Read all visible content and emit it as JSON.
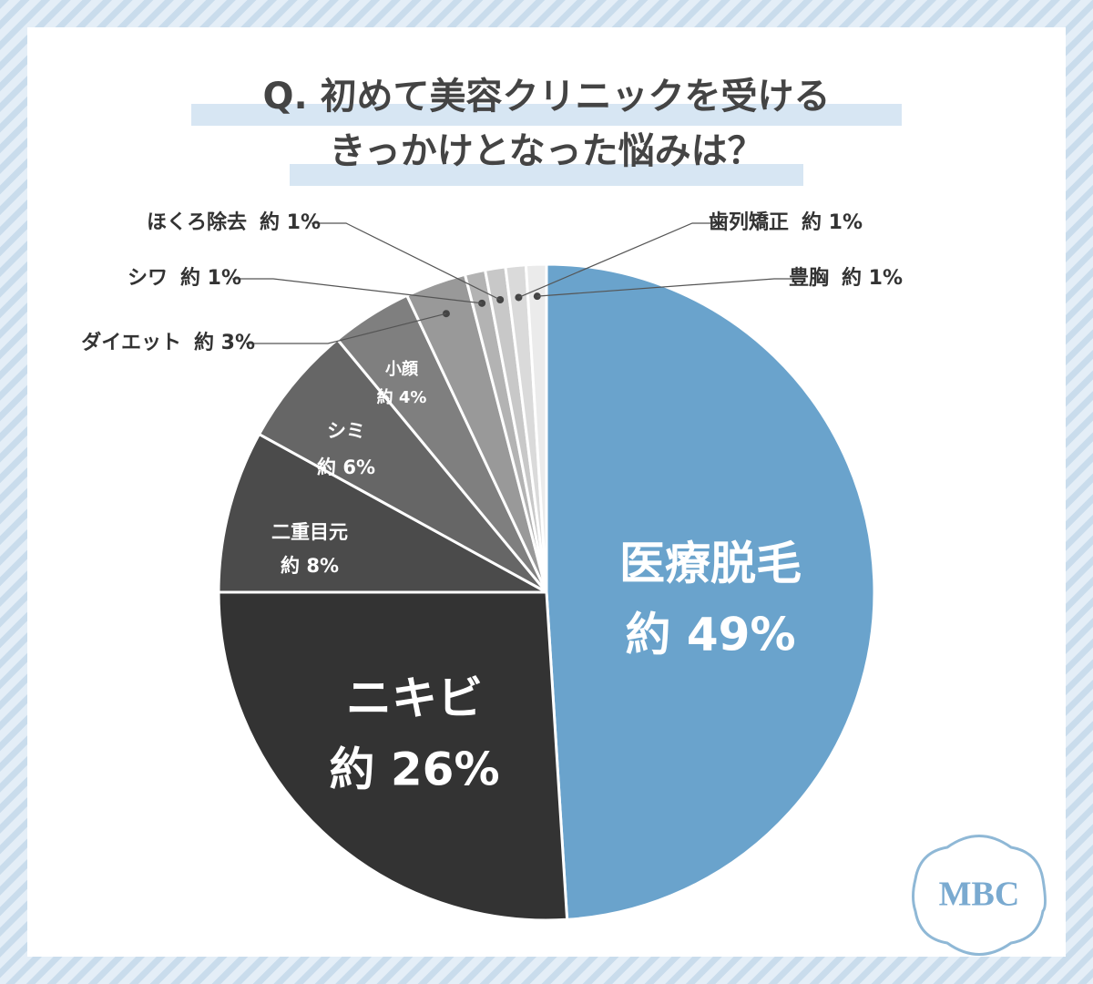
{
  "chart_data": {
    "type": "pie",
    "title_lines": [
      "Q. 初めて美容クリニックを受ける",
      "きっかけとなった悩みは？"
    ],
    "categories": [
      "医療脱毛",
      "ニキビ",
      "二重目元",
      "シミ",
      "小顔",
      "ダイエット",
      "シワ",
      "ほくろ除去",
      "歯列矯正",
      "豊胸"
    ],
    "values": [
      49,
      26,
      8,
      6,
      4,
      3,
      1,
      1,
      1,
      1
    ],
    "value_labels": [
      "約 49%",
      "約 26%",
      "約 8%",
      "約 6%",
      "約 4%",
      "約 3%",
      "約 1%",
      "約 1%",
      "約 1%",
      "約 1%"
    ],
    "colors": [
      "#6aa3cc",
      "#333333",
      "#4b4b4b",
      "#666666",
      "#7f7f7f",
      "#999999",
      "#b3b3b3",
      "#c8c8c8",
      "#dadada",
      "#ebebeb"
    ],
    "logo": "MBC"
  }
}
